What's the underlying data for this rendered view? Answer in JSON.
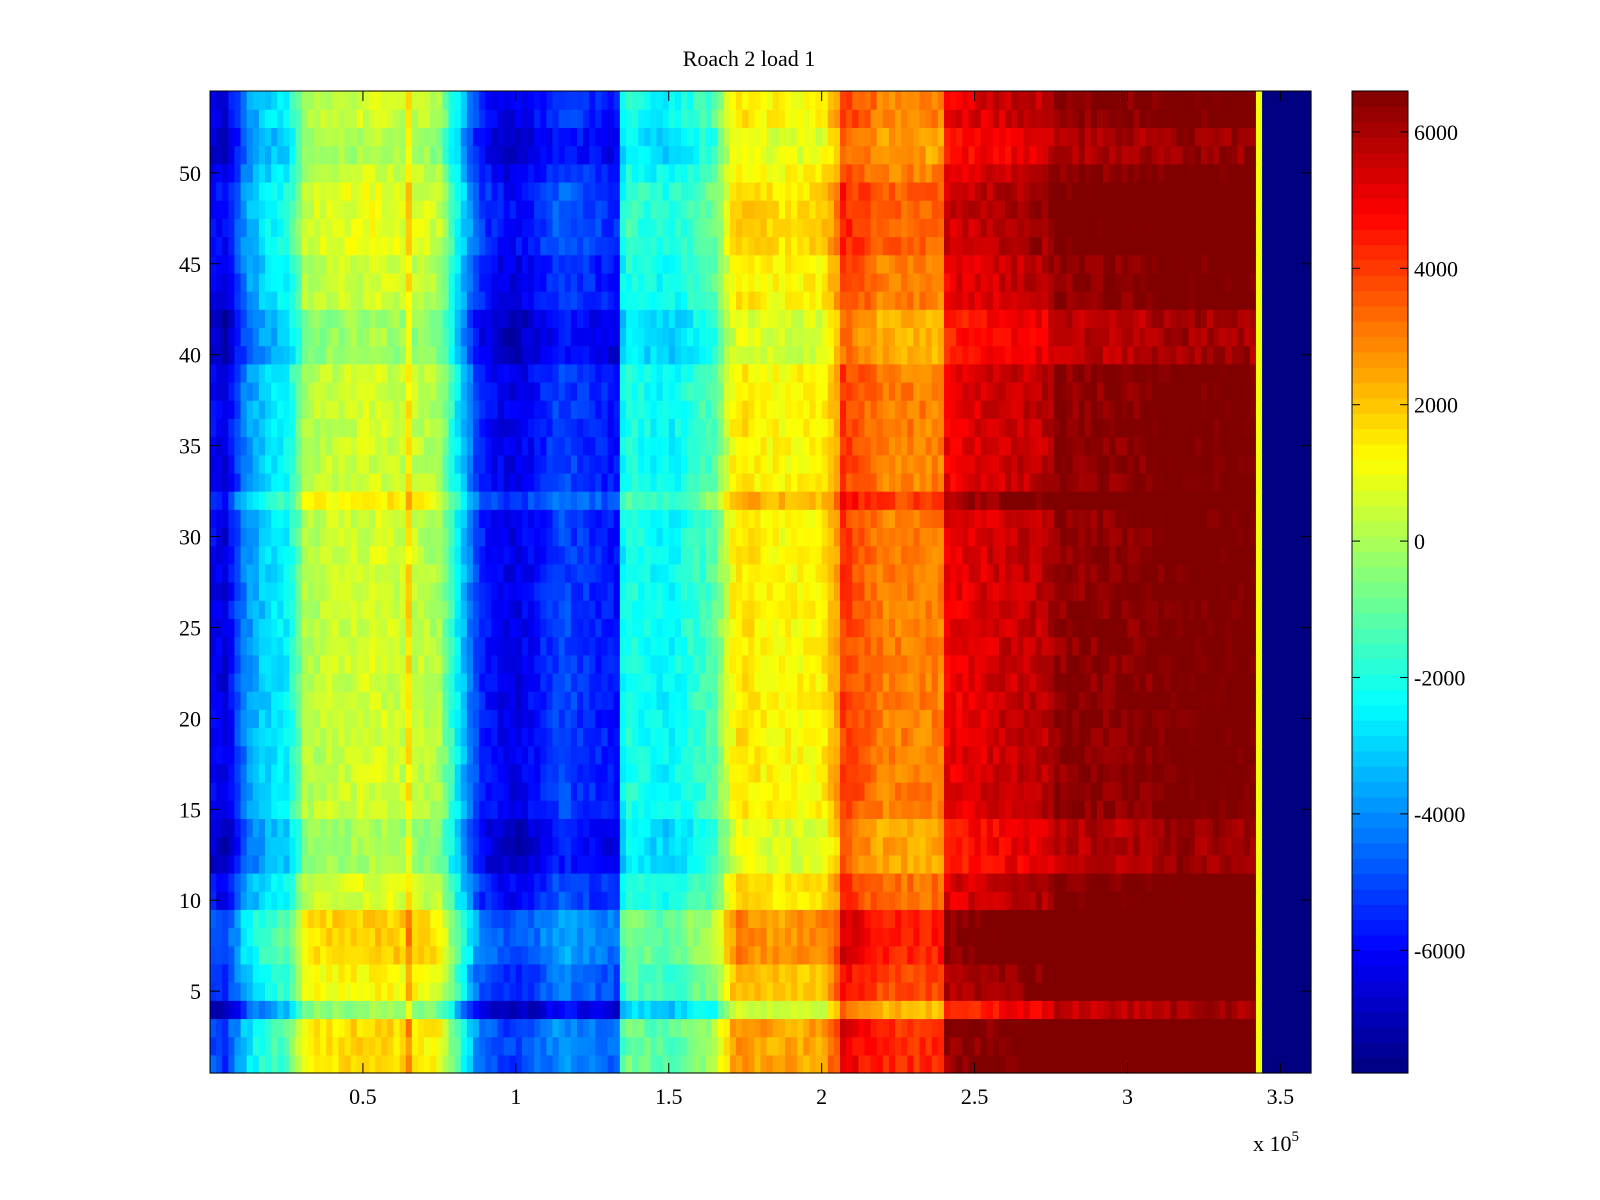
{
  "chart_data": {
    "type": "heatmap",
    "title": "Roach 2 load 1",
    "xlabel": "",
    "ylabel": "",
    "x_exponent_label": "x 10",
    "x_exponent_power": "5",
    "xlim": [
      0,
      3.6
    ],
    "ylim": [
      0.5,
      54.5
    ],
    "x_ticks": [
      0.5,
      1,
      1.5,
      2,
      2.5,
      3,
      3.5
    ],
    "x_tick_labels": [
      "0.5",
      "1",
      "1.5",
      "2",
      "2.5",
      "3",
      "3.5"
    ],
    "y_ticks": [
      5,
      10,
      15,
      20,
      25,
      30,
      35,
      40,
      45,
      50
    ],
    "y_tick_labels": [
      "5",
      "10",
      "15",
      "20",
      "25",
      "30",
      "35",
      "40",
      "45",
      "50"
    ],
    "colormap": "jet",
    "clim": [
      -7800,
      6600
    ],
    "colorbar_ticks": [
      6000,
      4000,
      2000,
      0,
      -2000,
      -4000,
      -6000
    ],
    "colorbar_tick_labels": [
      "6000",
      "4000",
      "2000",
      "0",
      "-2000",
      "-4000",
      "-6000"
    ],
    "rows": 54,
    "column_profile": {
      "x": [
        0.0,
        0.05,
        0.12,
        0.18,
        0.25,
        0.29,
        0.3,
        0.4,
        0.55,
        0.64,
        0.65,
        0.66,
        0.75,
        0.82,
        0.88,
        0.95,
        1.0,
        1.05,
        1.15,
        1.25,
        1.33,
        1.35,
        1.37,
        1.5,
        1.65,
        1.7,
        1.72,
        1.85,
        2.0,
        2.05,
        2.07,
        2.2,
        2.39,
        2.41,
        2.55,
        2.74,
        2.77,
        3.0,
        3.1,
        3.12,
        3.3,
        3.42,
        3.43,
        3.44,
        3.45,
        3.6
      ],
      "value": [
        -6000,
        -6500,
        -4000,
        -3000,
        -2500,
        -1000,
        0,
        400,
        600,
        400,
        1600,
        400,
        0,
        -3000,
        -5500,
        -6200,
        -6400,
        -6000,
        -5000,
        -5500,
        -5800,
        -2500,
        -2000,
        -2500,
        -1200,
        800,
        1600,
        1200,
        1300,
        2500,
        4000,
        3000,
        3000,
        5000,
        5400,
        5800,
        6400,
        6500,
        6600,
        6800,
        6800,
        6800,
        1000,
        -3000,
        -7800,
        -7800
      ]
    },
    "row_offsets": [
      {
        "rows": [
          1,
          2,
          3
        ],
        "offset": 1200
      },
      {
        "rows": [
          4
        ],
        "offset": -800
      },
      {
        "rows": [
          5,
          6
        ],
        "offset": 800
      },
      {
        "rows": [
          7,
          8,
          9
        ],
        "offset": 1400
      },
      {
        "rows": [
          10,
          11
        ],
        "offset": 200
      },
      {
        "rows": [
          12,
          13,
          14
        ],
        "offset": -600
      },
      {
        "rows": [
          32
        ],
        "offset": 900
      },
      {
        "rows": [
          40,
          41,
          42
        ],
        "offset": -700
      },
      {
        "rows": [
          46,
          47,
          48,
          49
        ],
        "offset": 400
      },
      {
        "rows": [
          51,
          52
        ],
        "offset": -500
      }
    ],
    "legend_position": "right (colorbar)"
  }
}
